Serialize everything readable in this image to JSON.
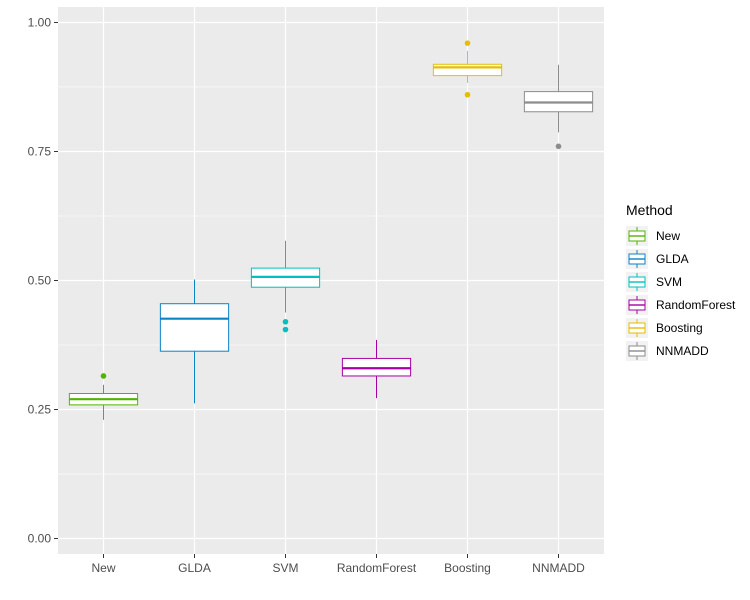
{
  "chart_data": {
    "type": "boxplot",
    "title": "",
    "xlabel": "",
    "ylabel": "",
    "ylim": [
      -0.03,
      1.03
    ],
    "yticks": [
      0.0,
      0.25,
      0.5,
      0.75,
      1.0
    ],
    "ytick_labels": [
      "0.00",
      "0.25",
      "0.50",
      "0.75",
      "1.00"
    ],
    "categories": [
      "New",
      "GLDA",
      "SVM",
      "RandomForest",
      "Boosting",
      "NNMADD"
    ],
    "series": [
      {
        "name": "New",
        "color": "#53b400",
        "whisker_low": 0.23,
        "q1": 0.259,
        "median": 0.27,
        "q3": 0.281,
        "whisker_high": 0.298,
        "outliers": [
          0.315
        ]
      },
      {
        "name": "GLDA",
        "color": "#0c83c6",
        "whisker_low": 0.262,
        "q1": 0.363,
        "median": 0.426,
        "q3": 0.455,
        "whisker_high": 0.502,
        "outliers": []
      },
      {
        "name": "SVM",
        "color": "#00c0c0",
        "whisker_low": 0.438,
        "q1": 0.487,
        "median": 0.507,
        "q3": 0.524,
        "whisker_high": 0.577,
        "outliers": [
          0.405,
          0.42
        ]
      },
      {
        "name": "RandomForest",
        "color": "#a500a5",
        "whisker_low": 0.272,
        "q1": 0.315,
        "median": 0.33,
        "q3": 0.349,
        "whisker_high": 0.385,
        "outliers": []
      },
      {
        "name": "Boosting",
        "color": "#e6be00",
        "whisker_low": 0.883,
        "q1": 0.897,
        "median": 0.913,
        "q3": 0.919,
        "whisker_high": 0.945,
        "outliers": [
          0.86,
          0.96
        ]
      },
      {
        "name": "NNMADD",
        "color": "#8c8c8c",
        "whisker_low": 0.787,
        "q1": 0.827,
        "median": 0.845,
        "q3": 0.866,
        "whisker_high": 0.918,
        "outliers": [
          0.76
        ]
      }
    ],
    "legend": {
      "title": "Method",
      "position": "right"
    }
  }
}
